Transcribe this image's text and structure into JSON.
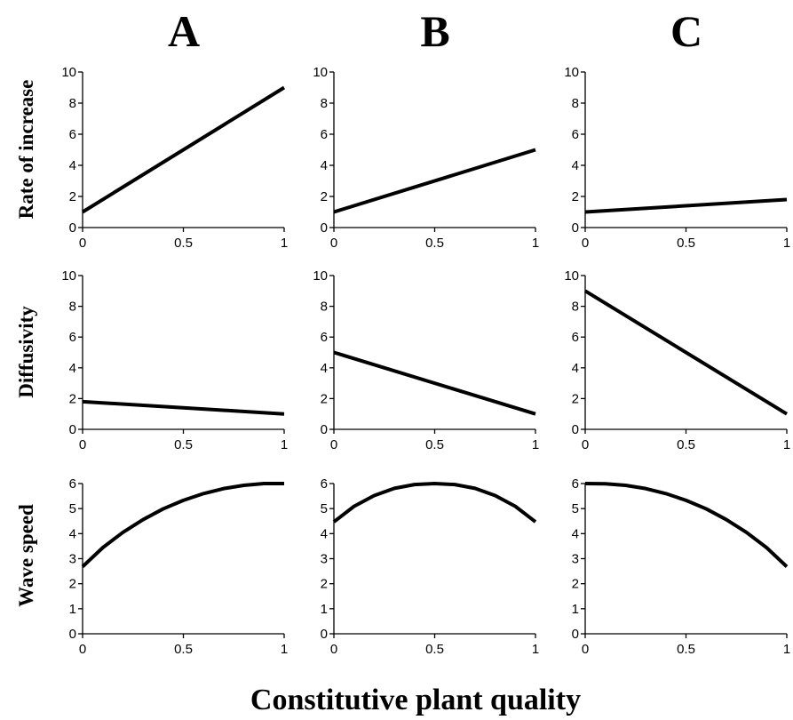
{
  "column_titles": [
    "A",
    "B",
    "C"
  ],
  "row_labels": [
    "Rate of increase",
    "Diffusivity",
    "Wave speed"
  ],
  "xlabel": "Constitutive plant quality",
  "chart_data": [
    {
      "type": "line",
      "panel": "A",
      "row": "Rate of increase",
      "x": [
        0,
        1
      ],
      "y": [
        1,
        9
      ],
      "xlim": [
        0,
        1
      ],
      "ylim": [
        0,
        10
      ],
      "xticks": [
        "0",
        "0.5",
        "1"
      ],
      "yticks": [
        "0",
        "2",
        "4",
        "6",
        "8",
        "10"
      ]
    },
    {
      "type": "line",
      "panel": "B",
      "row": "Rate of increase",
      "x": [
        0,
        1
      ],
      "y": [
        1,
        5
      ],
      "xlim": [
        0,
        1
      ],
      "ylim": [
        0,
        10
      ],
      "xticks": [
        "0",
        "0.5",
        "1"
      ],
      "yticks": [
        "0",
        "2",
        "4",
        "6",
        "8",
        "10"
      ]
    },
    {
      "type": "line",
      "panel": "C",
      "row": "Rate of increase",
      "x": [
        0,
        1
      ],
      "y": [
        1,
        1.8
      ],
      "xlim": [
        0,
        1
      ],
      "ylim": [
        0,
        10
      ],
      "xticks": [
        "0",
        "0.5",
        "1"
      ],
      "yticks": [
        "0",
        "2",
        "4",
        "6",
        "8",
        "10"
      ]
    },
    {
      "type": "line",
      "panel": "A",
      "row": "Diffusivity",
      "x": [
        0,
        1
      ],
      "y": [
        1.8,
        1
      ],
      "xlim": [
        0,
        1
      ],
      "ylim": [
        0,
        10
      ],
      "xticks": [
        "0",
        "0.5",
        "1"
      ],
      "yticks": [
        "0",
        "2",
        "4",
        "6",
        "8",
        "10"
      ]
    },
    {
      "type": "line",
      "panel": "B",
      "row": "Diffusivity",
      "x": [
        0,
        1
      ],
      "y": [
        5,
        1
      ],
      "xlim": [
        0,
        1
      ],
      "ylim": [
        0,
        10
      ],
      "xticks": [
        "0",
        "0.5",
        "1"
      ],
      "yticks": [
        "0",
        "2",
        "4",
        "6",
        "8",
        "10"
      ]
    },
    {
      "type": "line",
      "panel": "C",
      "row": "Diffusivity",
      "x": [
        0,
        1
      ],
      "y": [
        9,
        1
      ],
      "xlim": [
        0,
        1
      ],
      "ylim": [
        0,
        10
      ],
      "xticks": [
        "0",
        "0.5",
        "1"
      ],
      "yticks": [
        "0",
        "2",
        "4",
        "6",
        "8",
        "10"
      ]
    },
    {
      "type": "line",
      "panel": "A",
      "row": "Wave speed",
      "x": [
        0,
        0.1,
        0.2,
        0.3,
        0.4,
        0.5,
        0.6,
        0.7,
        0.8,
        0.9,
        1.0
      ],
      "y": [
        2.68,
        3.44,
        4.05,
        4.56,
        4.99,
        5.33,
        5.6,
        5.8,
        5.93,
        6.0,
        6.0
      ],
      "xlim": [
        0,
        1
      ],
      "ylim": [
        0,
        6
      ],
      "xticks": [
        "0",
        "0.5",
        "1"
      ],
      "yticks": [
        "0",
        "1",
        "2",
        "3",
        "4",
        "5",
        "6"
      ]
    },
    {
      "type": "line",
      "panel": "B",
      "row": "Wave speed",
      "x": [
        0,
        0.1,
        0.2,
        0.3,
        0.4,
        0.5,
        0.6,
        0.7,
        0.8,
        0.9,
        1.0
      ],
      "y": [
        4.47,
        5.09,
        5.52,
        5.81,
        5.96,
        6.0,
        5.96,
        5.81,
        5.52,
        5.09,
        4.47
      ],
      "xlim": [
        0,
        1
      ],
      "ylim": [
        0,
        6
      ],
      "xticks": [
        "0",
        "0.5",
        "1"
      ],
      "yticks": [
        "0",
        "1",
        "2",
        "3",
        "4",
        "5",
        "6"
      ]
    },
    {
      "type": "line",
      "panel": "C",
      "row": "Wave speed",
      "x": [
        0,
        0.1,
        0.2,
        0.3,
        0.4,
        0.5,
        0.6,
        0.7,
        0.8,
        0.9,
        1.0
      ],
      "y": [
        6.0,
        5.99,
        5.93,
        5.8,
        5.6,
        5.33,
        4.99,
        4.56,
        4.05,
        3.44,
        2.68
      ],
      "xlim": [
        0,
        1
      ],
      "ylim": [
        0,
        6
      ],
      "xticks": [
        "0",
        "0.5",
        "1"
      ],
      "yticks": [
        "0",
        "1",
        "2",
        "3",
        "4",
        "5",
        "6"
      ]
    }
  ]
}
